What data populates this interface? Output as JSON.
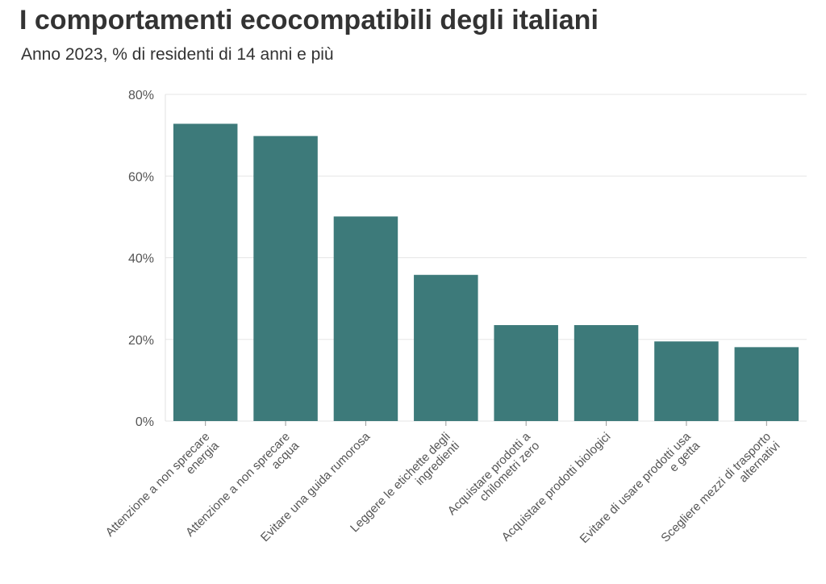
{
  "header": {
    "title": "I comportamenti ecocompatibili degli italiani",
    "subtitle": "Anno 2023, % di residenti di 14 anni e più"
  },
  "chart_data": {
    "type": "bar",
    "title": "I comportamenti ecocompatibili degli italiani",
    "subtitle": "Anno 2023, % di residenti di 14 anni e più",
    "xlabel": "",
    "ylabel": "",
    "categories": [
      [
        "Attenzione a non sprecare",
        "energia"
      ],
      [
        "Attenzione a non sprecare",
        "acqua"
      ],
      [
        "Evitare una guida rumorosa"
      ],
      [
        "Leggere le etichette degli",
        "ingredienti"
      ],
      [
        "Acquistare prodotti a",
        "chilometri zero"
      ],
      [
        "Acquistare prodotti biologici"
      ],
      [
        "Evitare di usare prodotti usa",
        "e getta"
      ],
      [
        "Scegliere mezzi di trasporto",
        "alternativi"
      ]
    ],
    "values": [
      72.8,
      69.8,
      50.1,
      35.8,
      23.5,
      23.5,
      19.5,
      18.1
    ],
    "ylim": [
      0,
      80
    ],
    "yticks": [
      0,
      20,
      40,
      60,
      80
    ],
    "ytick_labels": [
      "0%",
      "20%",
      "40%",
      "60%",
      "80%"
    ],
    "grid": true,
    "legend": "none",
    "bar_color": "#3d7a7a"
  }
}
